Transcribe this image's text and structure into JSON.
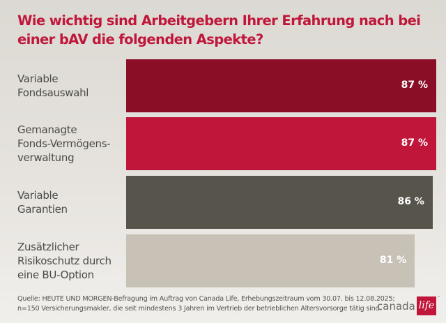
{
  "chart_data": {
    "type": "bar",
    "orientation": "horizontal",
    "title": "Wie wichtig sind Arbeitgebern Ihrer Erfahrung nach bei einer bAV die folgenden Aspekte?",
    "categories": [
      [
        "Variable",
        "Fondsauswahl"
      ],
      [
        "Gemanagte",
        "Fonds-Vermögens-",
        "verwaltung"
      ],
      [
        "Variable",
        "Garantien"
      ],
      [
        "Zusätzlicher",
        "Risikoschutz durch",
        "eine BU-Option"
      ]
    ],
    "values": [
      87,
      87,
      86,
      81
    ],
    "value_labels": [
      "87 %",
      "87 %",
      "86 %",
      "81 %"
    ],
    "colors": [
      "#8a0f26",
      "#c0163a",
      "#57544b",
      "#c8c1b6"
    ],
    "xlim": [
      0,
      87
    ],
    "unit": "%"
  },
  "footer": {
    "source_line1": "Quelle: HEUTE UND MORGEN-Befragung im Auftrag von Canada Life, Erhebungszeitraum vom 30.07. bis 12.08.2025;",
    "source_line2": "n=150 Versicherungsmakler, die seit mindestens 3 Jahren im Vertrieb der betrieblichen Altersvorsorge tätig sind."
  },
  "logo": {
    "text": "canada",
    "box_text": "life",
    "trademark": "™"
  }
}
